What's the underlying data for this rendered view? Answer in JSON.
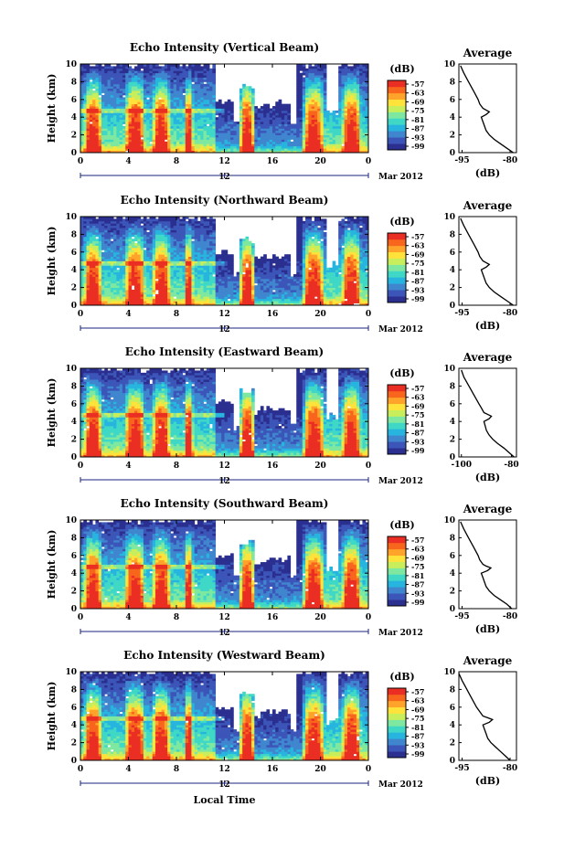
{
  "figure": {
    "xlabel": "Local Time",
    "date_label": "Mar 2012",
    "date_day": "12",
    "colorbar_unit": "(dB)",
    "colorbar_ticks": [
      "-57",
      "-63",
      "-69",
      "-75",
      "-81",
      "-87",
      "-93",
      "-99"
    ],
    "avg_title": "Average",
    "avg_xlabel": "(dB)",
    "colormap": [
      "#2b2f8f",
      "#3c55b8",
      "#3f86cf",
      "#27b5df",
      "#3fd8c7",
      "#7ee8a0",
      "#c8ee5b",
      "#ffe23a",
      "#ffa32a",
      "#f8651d",
      "#ea2e23"
    ]
  },
  "chart_data": [
    {
      "type": "heatmap",
      "title": "Echo Intensity (Vertical Beam)",
      "xlabel": "Local Time",
      "ylabel": "Height (km)",
      "xlim": [
        0,
        24
      ],
      "ylim": [
        0,
        10
      ],
      "x_ticks": [
        "0",
        "4",
        "8",
        "12",
        "16",
        "20",
        "0"
      ],
      "y_ticks": [
        "0",
        "2",
        "4",
        "6",
        "8",
        "10"
      ],
      "colorbar_range_dB": [
        -99,
        -57
      ],
      "average_profile": {
        "x_ticks": [
          "-95",
          "-80"
        ],
        "xlim": [
          -96,
          -78
        ],
        "ylim": [
          0,
          10
        ],
        "height_km": [
          0,
          0.5,
          1,
          1.5,
          2,
          2.5,
          3,
          3.5,
          4,
          4.3,
          4.6,
          4.8,
          5,
          5.5,
          6,
          7,
          8,
          9,
          9.8
        ],
        "echo_dB": [
          -79,
          -81,
          -83,
          -85,
          -86.5,
          -87.5,
          -88,
          -88.5,
          -89,
          -87.5,
          -86.5,
          -87.5,
          -88.5,
          -89.5,
          -90,
          -91.5,
          -93,
          -94.5,
          -95.5
        ]
      }
    },
    {
      "type": "heatmap",
      "title": "Echo Intensity (Northward Beam)",
      "xlabel": "Local Time",
      "ylabel": "Height (km)",
      "xlim": [
        0,
        24
      ],
      "ylim": [
        0,
        10
      ],
      "x_ticks": [
        "0",
        "4",
        "8",
        "12",
        "16",
        "20",
        "0"
      ],
      "y_ticks": [
        "0",
        "2",
        "4",
        "6",
        "8",
        "10"
      ],
      "colorbar_range_dB": [
        -99,
        -57
      ],
      "average_profile": {
        "x_ticks": [
          "-95",
          "-80"
        ],
        "xlim": [
          -96,
          -78
        ],
        "ylim": [
          0,
          10
        ],
        "height_km": [
          0,
          0.5,
          1,
          1.5,
          2,
          2.5,
          3,
          3.5,
          4,
          4.3,
          4.6,
          4.8,
          5,
          5.5,
          6,
          7,
          8,
          9,
          9.8
        ],
        "echo_dB": [
          -79,
          -81,
          -83,
          -85,
          -86.5,
          -87.5,
          -88,
          -88.5,
          -89,
          -87.5,
          -86.5,
          -87.5,
          -88.5,
          -89.5,
          -90,
          -91.5,
          -93,
          -94.5,
          -95.5
        ]
      }
    },
    {
      "type": "heatmap",
      "title": "Echo Intensity (Eastward Beam)",
      "xlabel": "Local Time",
      "ylabel": "Height (km)",
      "xlim": [
        0,
        24
      ],
      "ylim": [
        0,
        10
      ],
      "x_ticks": [
        "0",
        "4",
        "8",
        "12",
        "16",
        "20",
        "0"
      ],
      "y_ticks": [
        "0",
        "2",
        "4",
        "6",
        "8",
        "10"
      ],
      "colorbar_range_dB": [
        -99,
        -57
      ],
      "average_profile": {
        "x_ticks": [
          "-100",
          "-80"
        ],
        "xlim": [
          -101,
          -78
        ],
        "ylim": [
          0,
          10
        ],
        "height_km": [
          0,
          0.5,
          1,
          1.5,
          2,
          2.5,
          3,
          3.5,
          4,
          4.3,
          4.6,
          4.8,
          5,
          5.5,
          6,
          7,
          8,
          9,
          9.8
        ],
        "echo_dB": [
          -79,
          -81,
          -83,
          -85.5,
          -87.5,
          -89,
          -90,
          -90.5,
          -91,
          -89,
          -88,
          -89.5,
          -91,
          -92,
          -93,
          -95,
          -97,
          -99,
          -100
        ]
      }
    },
    {
      "type": "heatmap",
      "title": "Echo Intensity (Southward Beam)",
      "xlabel": "Local Time",
      "ylabel": "Height (km)",
      "xlim": [
        0,
        24
      ],
      "ylim": [
        0,
        10
      ],
      "x_ticks": [
        "0",
        "4",
        "8",
        "12",
        "16",
        "20",
        "0"
      ],
      "y_ticks": [
        "0",
        "2",
        "4",
        "6",
        "8",
        "10"
      ],
      "colorbar_range_dB": [
        -99,
        -57
      ],
      "average_profile": {
        "x_ticks": [
          "-95",
          "-80"
        ],
        "xlim": [
          -96,
          -78
        ],
        "ylim": [
          0,
          10
        ],
        "height_km": [
          0,
          0.5,
          1,
          1.5,
          2,
          2.5,
          3,
          3.5,
          4,
          4.3,
          4.6,
          4.8,
          5,
          5.5,
          6,
          7,
          8,
          9,
          9.8
        ],
        "echo_dB": [
          -79.5,
          -81,
          -83,
          -85,
          -86.5,
          -87.5,
          -88,
          -88.5,
          -89,
          -87,
          -86,
          -87.5,
          -88.5,
          -89.5,
          -90,
          -91.5,
          -93,
          -94.5,
          -95.5
        ]
      }
    },
    {
      "type": "heatmap",
      "title": "Echo Intensity (Westward Beam)",
      "xlabel": "Local Time",
      "ylabel": "Height (km)",
      "xlim": [
        0,
        24
      ],
      "ylim": [
        0,
        10
      ],
      "x_ticks": [
        "0",
        "4",
        "8",
        "12",
        "16",
        "20",
        "0"
      ],
      "y_ticks": [
        "0",
        "2",
        "4",
        "6",
        "8",
        "10"
      ],
      "colorbar_range_dB": [
        -99,
        -57
      ],
      "average_profile": {
        "x_ticks": [
          "-95",
          "-80"
        ],
        "xlim": [
          -96,
          -78
        ],
        "ylim": [
          0,
          10
        ],
        "height_km": [
          0,
          0.5,
          1,
          1.5,
          2,
          2.5,
          3,
          3.5,
          4,
          4.3,
          4.6,
          4.8,
          5,
          5.5,
          6,
          7,
          8,
          9,
          9.8
        ],
        "echo_dB": [
          -80,
          -81.5,
          -83,
          -84.5,
          -86,
          -87,
          -87.5,
          -88,
          -88.5,
          -86.5,
          -85.5,
          -87,
          -88.5,
          -89.5,
          -90.5,
          -92,
          -93.5,
          -95,
          -96
        ]
      }
    }
  ]
}
